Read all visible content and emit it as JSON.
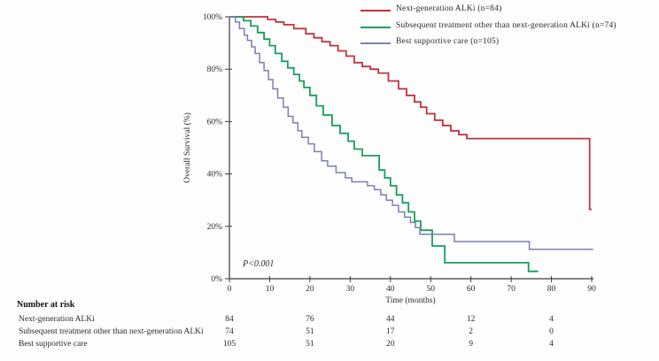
{
  "chart_data": {
    "type": "line",
    "subtype": "kaplan-meier-step",
    "title": "",
    "xlabel": "Time (months)",
    "ylabel": "Overall Survival (%)",
    "xlim": [
      0,
      90
    ],
    "ylim": [
      0,
      100
    ],
    "grid": false,
    "legend_position": "top-right",
    "annotation": "P<0.001",
    "x_ticks": {
      "values": [
        0,
        10,
        20,
        30,
        40,
        50,
        60,
        70,
        80,
        90
      ],
      "labels": [
        "0",
        "10",
        "20",
        "30",
        "40",
        "50",
        "60",
        "70",
        "80",
        "90"
      ]
    },
    "y_ticks": {
      "values": [
        0,
        20,
        40,
        60,
        80,
        100
      ],
      "labels": [
        "0%",
        "20%",
        "40%",
        "60%",
        "80%",
        "100%"
      ]
    },
    "series": [
      {
        "name": "Next-generation ALKi",
        "legend": "Next-generation ALKi (n=84)",
        "n": 84,
        "color": "#c1323d",
        "line_width": 1.8,
        "end_month": 90,
        "steps": [
          [
            0,
            100
          ],
          [
            9.5,
            99
          ],
          [
            11.5,
            98
          ],
          [
            13.5,
            97
          ],
          [
            16,
            95.5
          ],
          [
            19,
            93.5
          ],
          [
            21,
            92
          ],
          [
            23,
            90.5
          ],
          [
            25,
            89
          ],
          [
            27,
            87
          ],
          [
            29,
            85
          ],
          [
            31,
            82.5
          ],
          [
            33,
            81
          ],
          [
            35,
            80
          ],
          [
            37,
            78.5
          ],
          [
            39.5,
            75.5
          ],
          [
            42,
            72.5
          ],
          [
            44,
            70
          ],
          [
            46,
            67.5
          ],
          [
            47.5,
            65.5
          ],
          [
            49,
            63
          ],
          [
            51,
            60.5
          ],
          [
            53,
            58.5
          ],
          [
            55,
            56.5
          ],
          [
            57,
            55
          ],
          [
            59,
            53.5
          ],
          [
            89.5,
            26.5
          ]
        ]
      },
      {
        "name": "Subsequent treatment other than next-generation ALKi",
        "legend": "Subsequent treatment other than next-generation ALKi (n=74)",
        "n": 74,
        "color": "#169f5c",
        "line_width": 1.8,
        "end_month": 76.7,
        "steps": [
          [
            0,
            100
          ],
          [
            3.5,
            98.5
          ],
          [
            5.3,
            96.5
          ],
          [
            7,
            94
          ],
          [
            8.6,
            91.5
          ],
          [
            10,
            89
          ],
          [
            11.4,
            86
          ],
          [
            13,
            83
          ],
          [
            14.5,
            80.5
          ],
          [
            16,
            78
          ],
          [
            17.4,
            75.5
          ],
          [
            18.5,
            73
          ],
          [
            20,
            70
          ],
          [
            21.6,
            66
          ],
          [
            23.3,
            62.5
          ],
          [
            25.5,
            58.5
          ],
          [
            27.5,
            55.5
          ],
          [
            29.5,
            52.5
          ],
          [
            31,
            49.5
          ],
          [
            33,
            47
          ],
          [
            37.2,
            41.5
          ],
          [
            38.6,
            38.5
          ],
          [
            40,
            35.5
          ],
          [
            41.5,
            32
          ],
          [
            43,
            29
          ],
          [
            44.5,
            25.5
          ],
          [
            46,
            22
          ],
          [
            47.5,
            18.5
          ],
          [
            50.4,
            12.5
          ],
          [
            53.5,
            6.1
          ],
          [
            74.3,
            2.8
          ]
        ]
      },
      {
        "name": "Best supportive care",
        "legend": "Best supportive care (n=105)",
        "n": 105,
        "color": "#7b80b2",
        "line_width": 1.5,
        "end_month": 90.4,
        "steps": [
          [
            0,
            100
          ],
          [
            1.5,
            98
          ],
          [
            2.5,
            95.5
          ],
          [
            3.7,
            93
          ],
          [
            4.5,
            91
          ],
          [
            5.5,
            88.5
          ],
          [
            6.4,
            86
          ],
          [
            7.5,
            82.5
          ],
          [
            8.6,
            79.5
          ],
          [
            9.7,
            76
          ],
          [
            10.8,
            72.5
          ],
          [
            12,
            69
          ],
          [
            13.4,
            65.5
          ],
          [
            14.6,
            62
          ],
          [
            15.8,
            59.5
          ],
          [
            17,
            56.5
          ],
          [
            18,
            54
          ],
          [
            19.6,
            51.5
          ],
          [
            21.1,
            48.5
          ],
          [
            22.9,
            45
          ],
          [
            24.4,
            43
          ],
          [
            26.5,
            40.5
          ],
          [
            28.8,
            38.5
          ],
          [
            30.4,
            37
          ],
          [
            34.3,
            35.5
          ],
          [
            36,
            34
          ],
          [
            37.6,
            32
          ],
          [
            39,
            30
          ],
          [
            40.5,
            28
          ],
          [
            42,
            25.5
          ],
          [
            43.5,
            23.5
          ],
          [
            45,
            21.5
          ],
          [
            46.2,
            19.5
          ],
          [
            47.3,
            17
          ],
          [
            55.9,
            14.2
          ],
          [
            74.5,
            11.2
          ]
        ]
      }
    ],
    "number_at_risk": {
      "title": "Number at risk",
      "time_points": [
        0,
        20,
        40,
        60,
        80
      ],
      "rows": [
        {
          "label": "Next-generation ALKi",
          "counts": [
            "84",
            "76",
            "44",
            "12",
            "4"
          ]
        },
        {
          "label": "Subsequent treatment other than next-generation ALKi",
          "counts": [
            "74",
            "51",
            "17",
            "2",
            "0"
          ]
        },
        {
          "label": "Best supportive care",
          "counts": [
            "105",
            "51",
            "20",
            "9",
            "4"
          ]
        }
      ]
    }
  }
}
